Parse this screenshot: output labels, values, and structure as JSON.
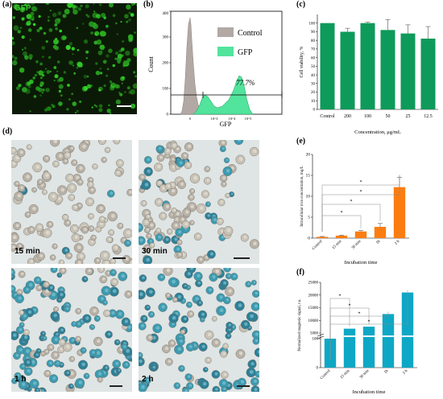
{
  "panel_a": {
    "label": "(a)",
    "image_label": "GFP",
    "colors": {
      "bg": "#0b1a06",
      "cell": "#39c62a"
    }
  },
  "panel_b": {
    "label": "(b)",
    "chart_data": {
      "type": "area",
      "xlabel": "GFP",
      "ylabel": "Count",
      "ylim": [
        0,
        400
      ],
      "yticks": [
        "0",
        "100",
        "200",
        "300",
        "400"
      ],
      "xticks": [
        "0",
        "10^3",
        "10^4",
        "10^5"
      ],
      "gate_label": "77.7%",
      "series": [
        {
          "name": "Control",
          "color": "#b2a9a4"
        },
        {
          "name": "GFP",
          "color": "#52e39c"
        }
      ]
    }
  },
  "panel_c": {
    "label": "(c)",
    "chart_data": {
      "type": "bar",
      "categories": [
        "Control",
        "200",
        "100",
        "50",
        "25",
        "12.5"
      ],
      "values": [
        100,
        90,
        100,
        92,
        88,
        82
      ],
      "errors": [
        0,
        4,
        1,
        12,
        10,
        14
      ],
      "xlabel": "Concentration, μg/mL",
      "ylabel": "Cell viability, %",
      "ylim": [
        0,
        110
      ],
      "yticks": [
        0,
        10,
        20,
        30,
        40,
        50,
        60,
        70,
        80,
        90,
        100
      ],
      "color": "#0e9a5a"
    }
  },
  "panel_d": {
    "label": "(d)",
    "images": [
      {
        "label": "15 min"
      },
      {
        "label": "30 min"
      },
      {
        "label": "1 h"
      },
      {
        "label": "2 h"
      }
    ]
  },
  "panel_e": {
    "label": "(e)",
    "chart_data": {
      "type": "bar",
      "categories": [
        "Control",
        "15 min",
        "30 min",
        "1h",
        "2 h"
      ],
      "values": [
        0.3,
        0.6,
        1.6,
        2.7,
        12.2
      ],
      "errors": [
        0.1,
        0.1,
        0.2,
        0.8,
        2.3
      ],
      "xlabel": "Incubation time",
      "ylabel": "Intracellular iron concentration, mg/L",
      "ylim": [
        0,
        20
      ],
      "yticks": [
        0,
        5,
        10,
        15,
        20
      ],
      "color": "#fb7d12",
      "significance": "*"
    }
  },
  "panel_f": {
    "label": "(f)",
    "chart_data": {
      "type": "bar",
      "categories": [
        "Control",
        "15 min",
        "30 min",
        "1h",
        "2 h"
      ],
      "values": [
        100,
        6700,
        7500,
        12500,
        21000
      ],
      "xlabel": "Incubation time",
      "ylabel": "Normalized magnetic signal, r.u.",
      "ylim": [
        0,
        25000
      ],
      "yticks": [
        "0",
        "100",
        "5000",
        "10000",
        "15000",
        "20000",
        "25000"
      ],
      "color": "#0ea7c5",
      "significance": "*"
    }
  }
}
